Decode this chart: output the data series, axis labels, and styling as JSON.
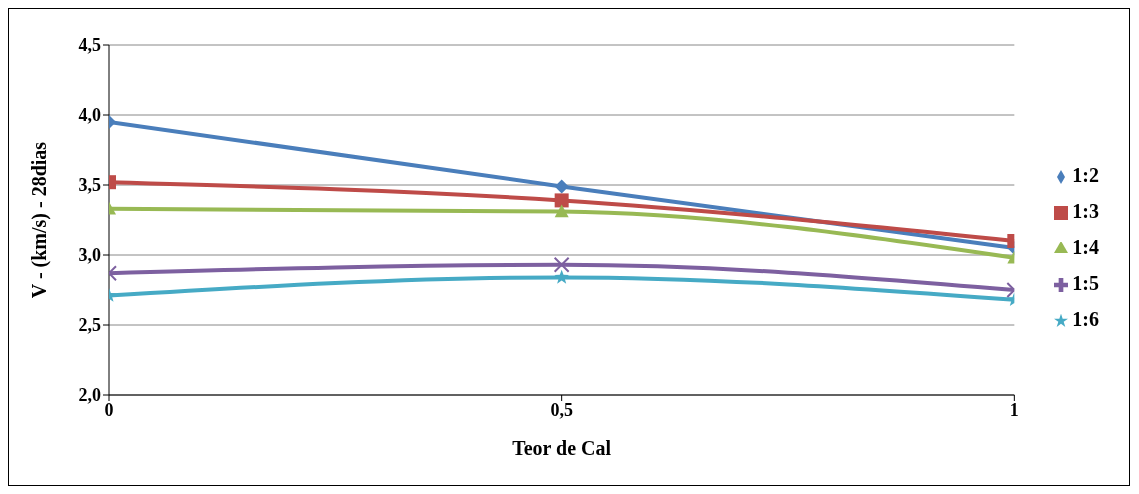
{
  "chart_data": {
    "type": "line",
    "xlabel": "Teor de Cal",
    "ylabel": "V - (km/s) - 28dias",
    "x": [
      0,
      0.5,
      1
    ],
    "xlim": [
      0,
      1
    ],
    "xticks": [
      0,
      {
        "value": 0.5,
        "label": "0,5"
      },
      1
    ],
    "ylim": [
      2,
      4.5
    ],
    "yticks": [
      {
        "value": 2,
        "label": "2,0"
      },
      {
        "value": 2.5,
        "label": "2,5"
      },
      {
        "value": 3,
        "label": "3,0"
      },
      {
        "value": 3.5,
        "label": "3,5"
      },
      {
        "value": 4,
        "label": "4,0"
      },
      {
        "value": 4.5,
        "label": "4,5"
      }
    ],
    "grid": "y",
    "legend": "right",
    "line_style": "solid",
    "series": [
      {
        "name": "1:2",
        "color": "#4a7ebb",
        "marker": "diamond",
        "values": [
          3.95,
          3.49,
          3.05
        ]
      },
      {
        "name": "1:3",
        "color": "#be4b48",
        "marker": "square",
        "values": [
          3.52,
          3.39,
          3.1
        ]
      },
      {
        "name": "1:4",
        "color": "#98b954",
        "marker": "triangle",
        "values": [
          3.33,
          3.31,
          2.98
        ]
      },
      {
        "name": "1:5",
        "color": "#7d60a0",
        "marker": "cross",
        "values": [
          2.87,
          2.93,
          2.75
        ]
      },
      {
        "name": "1:6",
        "color": "#46aac5",
        "marker": "star",
        "values": [
          2.71,
          2.84,
          2.68
        ]
      }
    ]
  }
}
